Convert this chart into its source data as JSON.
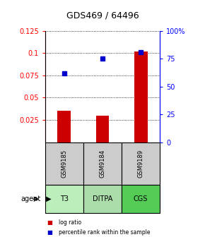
{
  "title": "GDS469 / 64496",
  "samples": [
    "GSM9185",
    "GSM9184",
    "GSM9189"
  ],
  "agents": [
    "T3",
    "DITPA",
    "CGS"
  ],
  "log_ratios": [
    0.035,
    0.03,
    0.102
  ],
  "percentile_ranks": [
    62,
    75,
    81
  ],
  "ylim_left": [
    0,
    0.125
  ],
  "ylim_right": [
    0,
    100
  ],
  "yticks_left": [
    0.025,
    0.05,
    0.075,
    0.1,
    0.125
  ],
  "yticks_right": [
    0,
    25,
    50,
    75,
    100
  ],
  "bar_color": "#cc0000",
  "dot_color": "#0000cc",
  "sample_box_color": "#cccccc",
  "agent_box_color_t3": "#bbeebb",
  "agent_box_color_ditpa": "#aaddaa",
  "agent_box_color_cgs": "#55cc55",
  "legend_bar_label": "log ratio",
  "legend_dot_label": "percentile rank within the sample",
  "bar_width": 0.35,
  "title_fontsize": 9,
  "tick_fontsize": 7,
  "label_fontsize": 7
}
